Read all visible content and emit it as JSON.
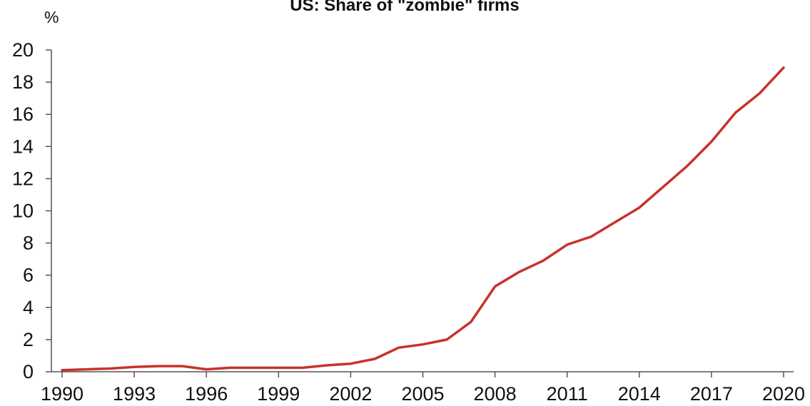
{
  "chart_data": {
    "type": "line",
    "title": "US: Share of \"zombie\" firms",
    "ylabel": "%",
    "xlabel": "",
    "xlim": [
      1990,
      2020
    ],
    "ylim": [
      0,
      20
    ],
    "x_ticks": [
      "1990",
      "1993",
      "1996",
      "1999",
      "2002",
      "2005",
      "2008",
      "2011",
      "2014",
      "2017",
      "2020"
    ],
    "y_ticks": [
      "0",
      "2",
      "4",
      "6",
      "8",
      "10",
      "12",
      "14",
      "16",
      "18",
      "20"
    ],
    "grid": false,
    "legend": "none",
    "colors": {
      "series": "#c8322d",
      "axis": "#555555",
      "text": "#111111"
    },
    "series": [
      {
        "x": [
          1990,
          1991,
          1992,
          1993,
          1994,
          1995,
          1996,
          1997,
          1998,
          1999,
          2000,
          2001,
          2002,
          2003,
          2004,
          2005,
          2006,
          2007,
          2008,
          2009,
          2010,
          2011,
          2012,
          2013,
          2014,
          2015,
          2016,
          2017,
          2018,
          2019,
          2020
        ],
        "values": [
          0.1,
          0.15,
          0.2,
          0.3,
          0.35,
          0.35,
          0.15,
          0.25,
          0.25,
          0.25,
          0.25,
          0.4,
          0.5,
          0.8,
          1.5,
          1.7,
          2.0,
          3.1,
          5.3,
          6.2,
          6.9,
          7.9,
          8.4,
          9.3,
          10.2,
          11.5,
          12.8,
          14.3,
          16.1,
          17.3,
          18.9
        ]
      }
    ]
  }
}
